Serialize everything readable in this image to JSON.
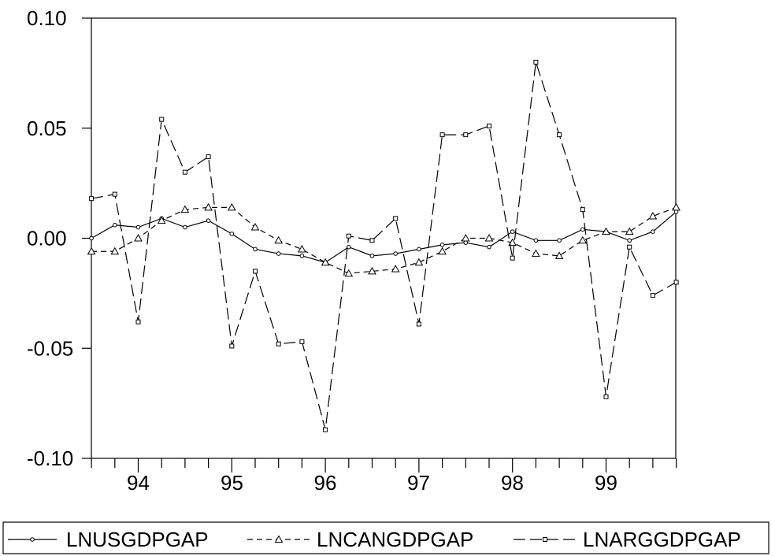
{
  "chart_data": {
    "type": "line",
    "title": "",
    "xlabel": "",
    "ylabel": "",
    "x_ticks": [
      "94",
      "95",
      "96",
      "97",
      "98",
      "99"
    ],
    "y_ticks": [
      "0.10",
      "0.05",
      "0.00",
      "-0.05",
      "-0.10"
    ],
    "ylim": [
      -0.1,
      0.1
    ],
    "x": [
      "1993Q3",
      "1993Q4",
      "1994Q1",
      "1994Q2",
      "1994Q3",
      "1994Q4",
      "1995Q1",
      "1995Q2",
      "1995Q3",
      "1995Q4",
      "1996Q1",
      "1996Q2",
      "1996Q3",
      "1996Q4",
      "1997Q1",
      "1997Q2",
      "1997Q3",
      "1997Q4",
      "1998Q1",
      "1998Q2",
      "1998Q3",
      "1998Q4",
      "1999Q1",
      "1999Q2",
      "1999Q3",
      "1999Q4"
    ],
    "grid": false,
    "legend_position": "bottom",
    "series": [
      {
        "name": "LNUSGDPGAP",
        "style": "solid",
        "marker": "circle",
        "color": "#000000",
        "values": [
          0.0,
          0.006,
          0.005,
          0.009,
          0.005,
          0.008,
          0.002,
          -0.005,
          -0.007,
          -0.008,
          -0.011,
          -0.004,
          -0.008,
          -0.007,
          -0.005,
          -0.003,
          -0.002,
          -0.004,
          0.003,
          -0.001,
          -0.001,
          0.004,
          0.003,
          -0.001,
          0.003,
          0.012
        ]
      },
      {
        "name": "LNCANGDPGAP",
        "style": "dashed",
        "marker": "triangle",
        "color": "#000000",
        "values": [
          -0.006,
          -0.006,
          0.0,
          0.008,
          0.013,
          0.014,
          0.014,
          0.005,
          -0.001,
          -0.005,
          -0.011,
          -0.016,
          -0.015,
          -0.014,
          -0.011,
          -0.006,
          0.0,
          0.0,
          -0.002,
          -0.007,
          -0.008,
          -0.001,
          0.003,
          0.003,
          0.01,
          0.014
        ]
      },
      {
        "name": "LNARGGDPGAP",
        "style": "long-dash",
        "marker": "square",
        "color": "#000000",
        "values": [
          0.018,
          0.02,
          -0.038,
          0.054,
          0.03,
          0.037,
          -0.049,
          -0.015,
          -0.048,
          -0.047,
          -0.087,
          0.001,
          -0.001,
          0.009,
          -0.039,
          0.047,
          0.047,
          0.051,
          -0.009,
          0.08,
          0.047,
          0.013,
          -0.072,
          -0.004,
          -0.026,
          -0.02
        ]
      }
    ]
  }
}
